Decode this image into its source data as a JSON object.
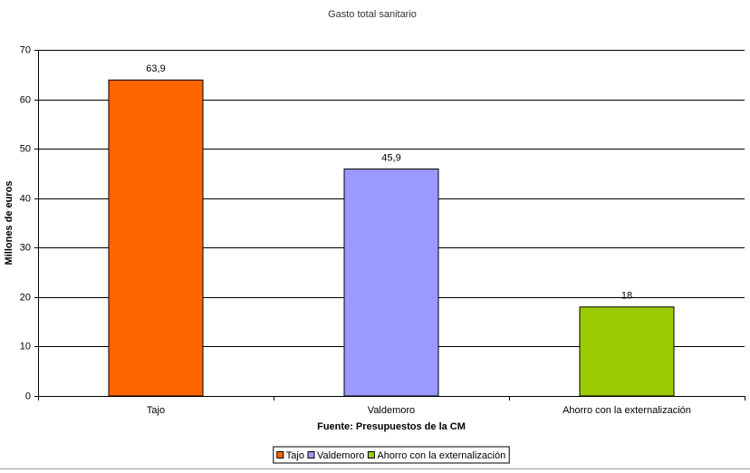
{
  "chart_data": {
    "type": "bar",
    "title": "Gasto total sanitario",
    "y_label": "Millones de euros",
    "x_label": "Fuente: Presupuestos de la CM",
    "categories": [
      "Tajo",
      "Valdemoro",
      "Ahorro con la externalización"
    ],
    "values": [
      63.9,
      45.9,
      18
    ],
    "value_labels": [
      "63,9",
      "45,9",
      "18"
    ],
    "colors": [
      "#ff6600",
      "#9999ff",
      "#99cc00"
    ],
    "ylim": [
      0,
      70
    ],
    "yticks": [
      0,
      10,
      20,
      30,
      40,
      50,
      60,
      70
    ],
    "grid": true,
    "legend": "bottom"
  }
}
